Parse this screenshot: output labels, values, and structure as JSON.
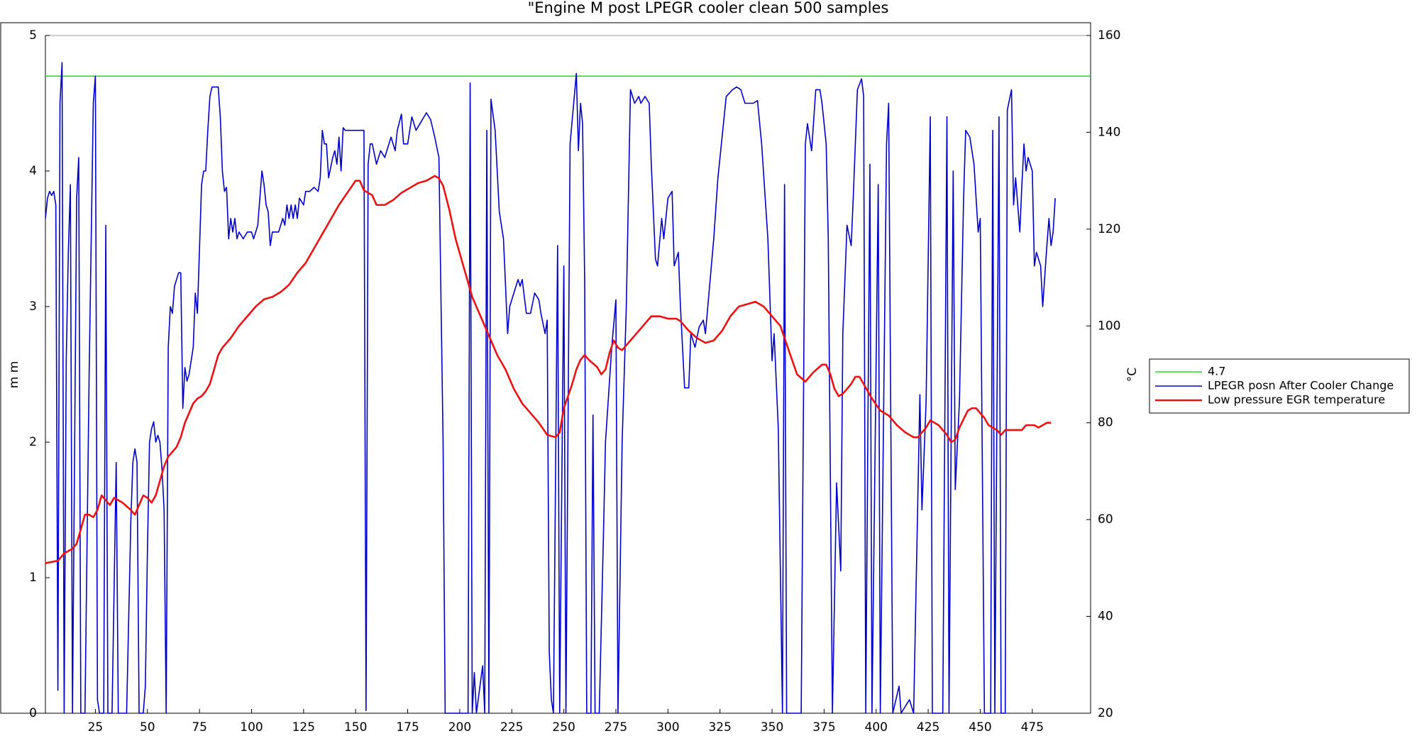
{
  "chart_data": {
    "type": "line",
    "title": "\"Engine M  post LPEGR cooler clean 500 samples",
    "y_label": "m m",
    "y2_label": "°C",
    "xlim": [
      1,
      503
    ],
    "xticks": [
      25,
      50,
      75,
      100,
      125,
      150,
      175,
      200,
      225,
      250,
      275,
      300,
      325,
      350,
      375,
      400,
      425,
      450,
      475
    ],
    "ylim": [
      0,
      5
    ],
    "yticks": [
      0,
      1,
      2,
      3,
      4,
      5
    ],
    "y2lim": [
      20,
      160
    ],
    "y2ticks": [
      20,
      40,
      60,
      80,
      100,
      120,
      140,
      160
    ],
    "grid": false,
    "legend": "outside right",
    "series": [
      {
        "name": "4.7",
        "color": "#22dd22",
        "x": [
          1,
          503
        ],
        "values": [
          4.7,
          4.7
        ]
      },
      {
        "name": "LPEGR posn After Cooler Change",
        "color": "#0000cc",
        "x": [
          1,
          2,
          3,
          4,
          5,
          6,
          7,
          8,
          9,
          10,
          11,
          12,
          13,
          14,
          16,
          17,
          18,
          20,
          22,
          24,
          25,
          26,
          27,
          29,
          30,
          31,
          33,
          35,
          36,
          40,
          42,
          43,
          44,
          45,
          46,
          48,
          49,
          50,
          51,
          52,
          53,
          54,
          55,
          56,
          57,
          58,
          59,
          60,
          61,
          62,
          63,
          64,
          65,
          66,
          67,
          68,
          69,
          70,
          72,
          73,
          74,
          76,
          77,
          78,
          79,
          80,
          81,
          84,
          85,
          86,
          87,
          88,
          89,
          90,
          91,
          92,
          93,
          94,
          96,
          98,
          100,
          101,
          103,
          105,
          106,
          107,
          108,
          109,
          110,
          113,
          115,
          116,
          117,
          118,
          119,
          120,
          121,
          122,
          123,
          125,
          126,
          128,
          130,
          132,
          133,
          134,
          135,
          136,
          137,
          139,
          140,
          141,
          142,
          143,
          144,
          145,
          147,
          150,
          154,
          155,
          156,
          157,
          158,
          160,
          162,
          164,
          166,
          167,
          169,
          170,
          172,
          173,
          175,
          177,
          179,
          184,
          186,
          188,
          190,
          192,
          193,
          204,
          205,
          206,
          207,
          208,
          211,
          212,
          213,
          214,
          215,
          217,
          219,
          221,
          223,
          224,
          226,
          228,
          229,
          230,
          232,
          234,
          236,
          238,
          239,
          241,
          242,
          243,
          244,
          245,
          247,
          248,
          250,
          251,
          253,
          256,
          257,
          258,
          259,
          260,
          261,
          263,
          264,
          265,
          267,
          269,
          270,
          273,
          275,
          276,
          278,
          280,
          282,
          284,
          286,
          287,
          289,
          291,
          292,
          294,
          295,
          297,
          298,
          300,
          302,
          303,
          305,
          306,
          308,
          310,
          311,
          313,
          315,
          317,
          318,
          320,
          322,
          324,
          326,
          328,
          331,
          333,
          335,
          337,
          339,
          341,
          343,
          345,
          348,
          350,
          351,
          353,
          355,
          356,
          357,
          364,
          366,
          367,
          369,
          371,
          373,
          374,
          376,
          377,
          379,
          381,
          383,
          384,
          386,
          388,
          389,
          391,
          393,
          394,
          395,
          397,
          398,
          401,
          402,
          405,
          406,
          408,
          411,
          412,
          416,
          418,
          421,
          422,
          424,
          426,
          427,
          432,
          434,
          435,
          437,
          438,
          440,
          442,
          443,
          445,
          447,
          449,
          450,
          452,
          455,
          456,
          457,
          459,
          460,
          462,
          463,
          465,
          466,
          467,
          469,
          470,
          471,
          472,
          473,
          475,
          476,
          477,
          479,
          480,
          482,
          483,
          484,
          485,
          486
        ],
        "values": [
          3.65,
          3.8,
          3.85,
          3.82,
          3.85,
          3.75,
          0.17,
          4.5,
          4.8,
          0,
          2.6,
          3.4,
          3.9,
          0,
          3.8,
          4.1,
          0,
          0,
          2.5,
          4.5,
          4.7,
          0.1,
          0,
          0,
          3.6,
          0,
          0,
          1.85,
          0,
          0,
          1.4,
          1.85,
          1.95,
          1.85,
          0,
          0,
          0.2,
          1.2,
          2.0,
          2.1,
          2.15,
          2.0,
          2.05,
          2.0,
          1.8,
          1.5,
          0,
          2.7,
          3.0,
          2.95,
          3.15,
          3.2,
          3.25,
          3.25,
          2.25,
          2.55,
          2.45,
          2.5,
          2.7,
          3.1,
          2.95,
          3.9,
          4.0,
          4.0,
          4.3,
          4.55,
          4.62,
          4.62,
          4.4,
          4.0,
          3.85,
          3.88,
          3.5,
          3.65,
          3.55,
          3.65,
          3.5,
          3.55,
          3.5,
          3.55,
          3.55,
          3.5,
          3.6,
          4.0,
          3.9,
          3.75,
          3.7,
          3.45,
          3.55,
          3.55,
          3.65,
          3.6,
          3.75,
          3.65,
          3.75,
          3.65,
          3.75,
          3.65,
          3.8,
          3.75,
          3.85,
          3.85,
          3.88,
          3.85,
          3.95,
          4.3,
          4.2,
          4.2,
          3.95,
          4.1,
          4.15,
          4.05,
          4.25,
          4.0,
          4.32,
          4.3,
          4.3,
          4.3,
          4.3,
          0.02,
          4.05,
          4.2,
          4.2,
          4.05,
          4.15,
          4.1,
          4.2,
          4.25,
          4.15,
          4.3,
          4.42,
          4.2,
          4.2,
          4.4,
          4.3,
          4.43,
          4.38,
          4.25,
          4.1,
          2.0,
          0,
          0,
          4.65,
          0,
          0.3,
          0,
          0.35,
          0,
          4.3,
          0,
          4.53,
          4.3,
          3.7,
          3.5,
          2.8,
          3.0,
          3.1,
          3.2,
          3.15,
          3.2,
          2.95,
          2.95,
          3.1,
          3.05,
          2.95,
          2.8,
          2.9,
          0.45,
          0.1,
          0,
          3.45,
          0,
          3.3,
          0,
          4.2,
          4.72,
          4.15,
          4.5,
          4.35,
          3.2,
          0,
          0,
          2.2,
          0,
          0,
          1.3,
          2.0,
          2.7,
          3.05,
          0,
          2.0,
          3.0,
          4.6,
          4.5,
          4.55,
          4.5,
          4.55,
          4.5,
          4.05,
          3.35,
          3.3,
          3.65,
          3.5,
          3.8,
          3.85,
          3.3,
          3.4,
          3.0,
          2.4,
          2.4,
          2.8,
          2.7,
          2.85,
          2.9,
          2.8,
          3.15,
          3.5,
          3.95,
          4.25,
          4.55,
          4.6,
          4.62,
          4.6,
          4.5,
          4.5,
          4.5,
          4.52,
          4.2,
          3.5,
          2.6,
          2.8,
          2.1,
          0,
          3.9,
          0,
          0,
          4.2,
          4.35,
          4.15,
          4.6,
          4.6,
          4.5,
          4.2,
          3.5,
          0,
          1.7,
          1.05,
          2.8,
          3.6,
          3.45,
          3.8,
          4.6,
          4.68,
          4.55,
          0,
          4.05,
          0,
          3.9,
          0,
          4.2,
          4.5,
          0,
          0.2,
          0,
          0.1,
          0,
          2.35,
          1.5,
          2.3,
          4.4,
          0,
          0,
          4.4,
          0,
          4.0,
          1.65,
          2.3,
          3.8,
          4.3,
          4.25,
          4.05,
          3.55,
          3.65,
          0,
          0,
          4.3,
          0,
          4.4,
          0,
          0,
          4.45,
          4.6,
          3.75,
          3.95,
          3.55,
          3.9,
          4.2,
          4.0,
          4.1,
          4.0,
          3.3,
          3.4,
          3.3,
          3.0,
          3.45,
          3.65,
          3.45,
          3.55,
          3.8
        ]
      },
      {
        "name": "Low pressure EGR temperature",
        "color": "#ee1111",
        "axis": "y2",
        "x": [
          1,
          7,
          10,
          14,
          16,
          18,
          20,
          22,
          24,
          26,
          28,
          30,
          32,
          34,
          36,
          38,
          42,
          44,
          46,
          48,
          50,
          52,
          54,
          56,
          58,
          60,
          62,
          64,
          66,
          68,
          70,
          72,
          74,
          76,
          78,
          80,
          82,
          84,
          86,
          90,
          94,
          98,
          102,
          106,
          110,
          114,
          118,
          122,
          126,
          130,
          134,
          138,
          142,
          146,
          150,
          152,
          154,
          158,
          160,
          164,
          168,
          172,
          176,
          180,
          184,
          188,
          190,
          192,
          195,
          198,
          202,
          206,
          210,
          214,
          218,
          222,
          226,
          230,
          234,
          238,
          242,
          246,
          248,
          250,
          254,
          256,
          258,
          260,
          262,
          266,
          268,
          270,
          272,
          274,
          276,
          278,
          280,
          284,
          288,
          292,
          296,
          300,
          304,
          306,
          310,
          314,
          318,
          322,
          326,
          330,
          334,
          338,
          342,
          346,
          350,
          354,
          358,
          362,
          366,
          370,
          374,
          376,
          378,
          380,
          382,
          384,
          388,
          390,
          392,
          394,
          398,
          402,
          406,
          410,
          414,
          418,
          420,
          424,
          426,
          430,
          434,
          436,
          438,
          440,
          444,
          446,
          448,
          452,
          454,
          458,
          460,
          462,
          466,
          470,
          472,
          476,
          478,
          480,
          482,
          484
        ],
        "values": [
          51,
          51.5,
          53,
          54,
          55,
          58,
          61,
          61,
          60.5,
          62,
          65,
          64,
          63,
          64.5,
          64,
          63.5,
          62,
          61,
          63,
          65,
          64.5,
          63.5,
          65,
          68,
          71,
          73,
          74,
          75,
          77,
          80,
          82,
          84,
          85,
          85.5,
          86.5,
          88,
          91,
          94,
          95.5,
          97.5,
          100,
          102,
          104,
          105.5,
          106,
          107,
          108.5,
          111,
          113,
          116,
          119,
          122,
          125,
          127.5,
          130,
          130,
          128,
          127,
          125,
          125,
          126,
          127.5,
          128.5,
          129.5,
          130,
          131,
          130.5,
          129,
          124,
          118,
          112,
          106,
          102,
          98,
          94,
          91,
          87,
          84,
          82,
          80,
          77.5,
          77,
          78,
          83,
          88,
          91,
          93,
          94,
          93,
          91.5,
          90,
          91,
          94.5,
          97,
          95.5,
          95,
          96,
          98,
          100,
          102,
          102,
          101.5,
          101.5,
          101,
          99,
          97.5,
          96.5,
          97,
          99,
          102,
          104,
          104.5,
          105,
          104,
          102,
          100,
          95,
          90,
          88.5,
          90.5,
          92,
          92,
          90,
          87,
          85.5,
          86,
          88,
          89.5,
          89.5,
          88,
          85,
          82.5,
          81.5,
          79.5,
          78,
          77,
          77,
          79,
          80.5,
          79.5,
          77.5,
          76,
          76.5,
          79,
          82.5,
          83,
          83,
          81,
          79.5,
          78.5,
          77.5,
          78.5,
          78.5,
          78.5,
          79.5,
          79.5,
          79,
          79.5,
          80,
          80
        ]
      }
    ]
  }
}
